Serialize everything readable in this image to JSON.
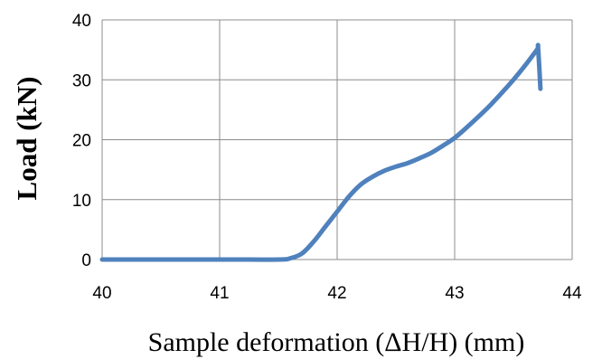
{
  "chart_data": {
    "type": "line",
    "xlabel": "Sample deformation (ΔH/H) (mm)",
    "ylabel": "Load (kN)",
    "xlim": [
      40,
      44
    ],
    "ylim": [
      0,
      40
    ],
    "xticks": [
      "40",
      "41",
      "42",
      "43",
      "44"
    ],
    "yticks": [
      "0",
      "10",
      "20",
      "30",
      "40"
    ],
    "grid": true,
    "series": [
      {
        "color": "#4f81bd",
        "x": [
          40.0,
          41.0,
          41.5,
          41.6,
          41.7,
          41.8,
          41.9,
          42.0,
          42.1,
          42.2,
          42.3,
          42.4,
          42.5,
          42.6,
          42.7,
          42.8,
          42.9,
          43.0,
          43.1,
          43.2,
          43.3,
          43.4,
          43.5,
          43.6,
          43.7,
          43.71,
          43.73
        ],
        "y": [
          0,
          0,
          0,
          0.2,
          1.0,
          3.0,
          5.5,
          8.0,
          10.5,
          12.5,
          13.8,
          14.8,
          15.5,
          16.1,
          16.9,
          17.8,
          19.0,
          20.3,
          22.0,
          23.8,
          25.7,
          27.8,
          30.0,
          32.4,
          35.0,
          35.3,
          28.5
        ]
      }
    ]
  }
}
